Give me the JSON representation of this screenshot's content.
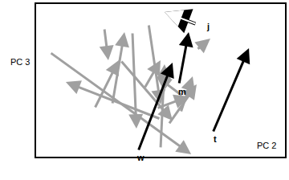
{
  "chart_data": {
    "type": "vector",
    "xlabel": "PC 2",
    "ylabel": "PC 3",
    "xlim": [
      0,
      100
    ],
    "ylim": [
      0,
      100
    ],
    "xticks": [],
    "yticks": [],
    "tick_labels": false,
    "grid": false,
    "series": [
      {
        "color": "#a0a0a0",
        "marker": "filled",
        "x0": [
          5.5,
          50,
          33.9,
          27.4,
          38.7,
          45.2,
          23.5,
          30.6,
          50,
          58.1,
          59,
          53.2,
          48.4,
          64.5,
          43.5
        ],
        "y0": [
          68.4,
          24.7,
          63.2,
          84.2,
          81.6,
          86.8,
          31.6,
          34.2,
          5.3,
          28.9,
          39.5,
          21.1,
          31.6,
          70,
          44.7
        ],
        "x1": [
          62.3,
          11.9,
          54.8,
          29,
          40.3,
          50,
          33.2,
          35.5,
          51.6,
          62.9,
          48.4,
          64.5,
          61.3,
          70,
          50
        ],
        "y1": [
          1.6,
          48.9,
          23.7,
          63.2,
          18.4,
          34.2,
          63.2,
          81.6,
          60.5,
          52.6,
          52.6,
          47.4,
          39.5,
          77.4,
          63.2
        ]
      },
      {
        "color": "#000000",
        "marker": "filled",
        "labels": [
          "w",
          "m",
          "t"
        ],
        "x0": [
          41,
          57.4,
          71
        ],
        "y0": [
          3.7,
          47.4,
          15.8
        ],
        "x1": [
          54.8,
          61.3,
          85.5
        ],
        "y1": [
          61.6,
          81.6,
          71
        ]
      },
      {
        "color": "#ffffff",
        "marker": "open",
        "labels": [
          "j"
        ],
        "x0": [
          64.5
        ],
        "y0": [
          86.8
        ],
        "x1": [
          51.6
        ],
        "y1": [
          94.7
        ]
      }
    ]
  }
}
